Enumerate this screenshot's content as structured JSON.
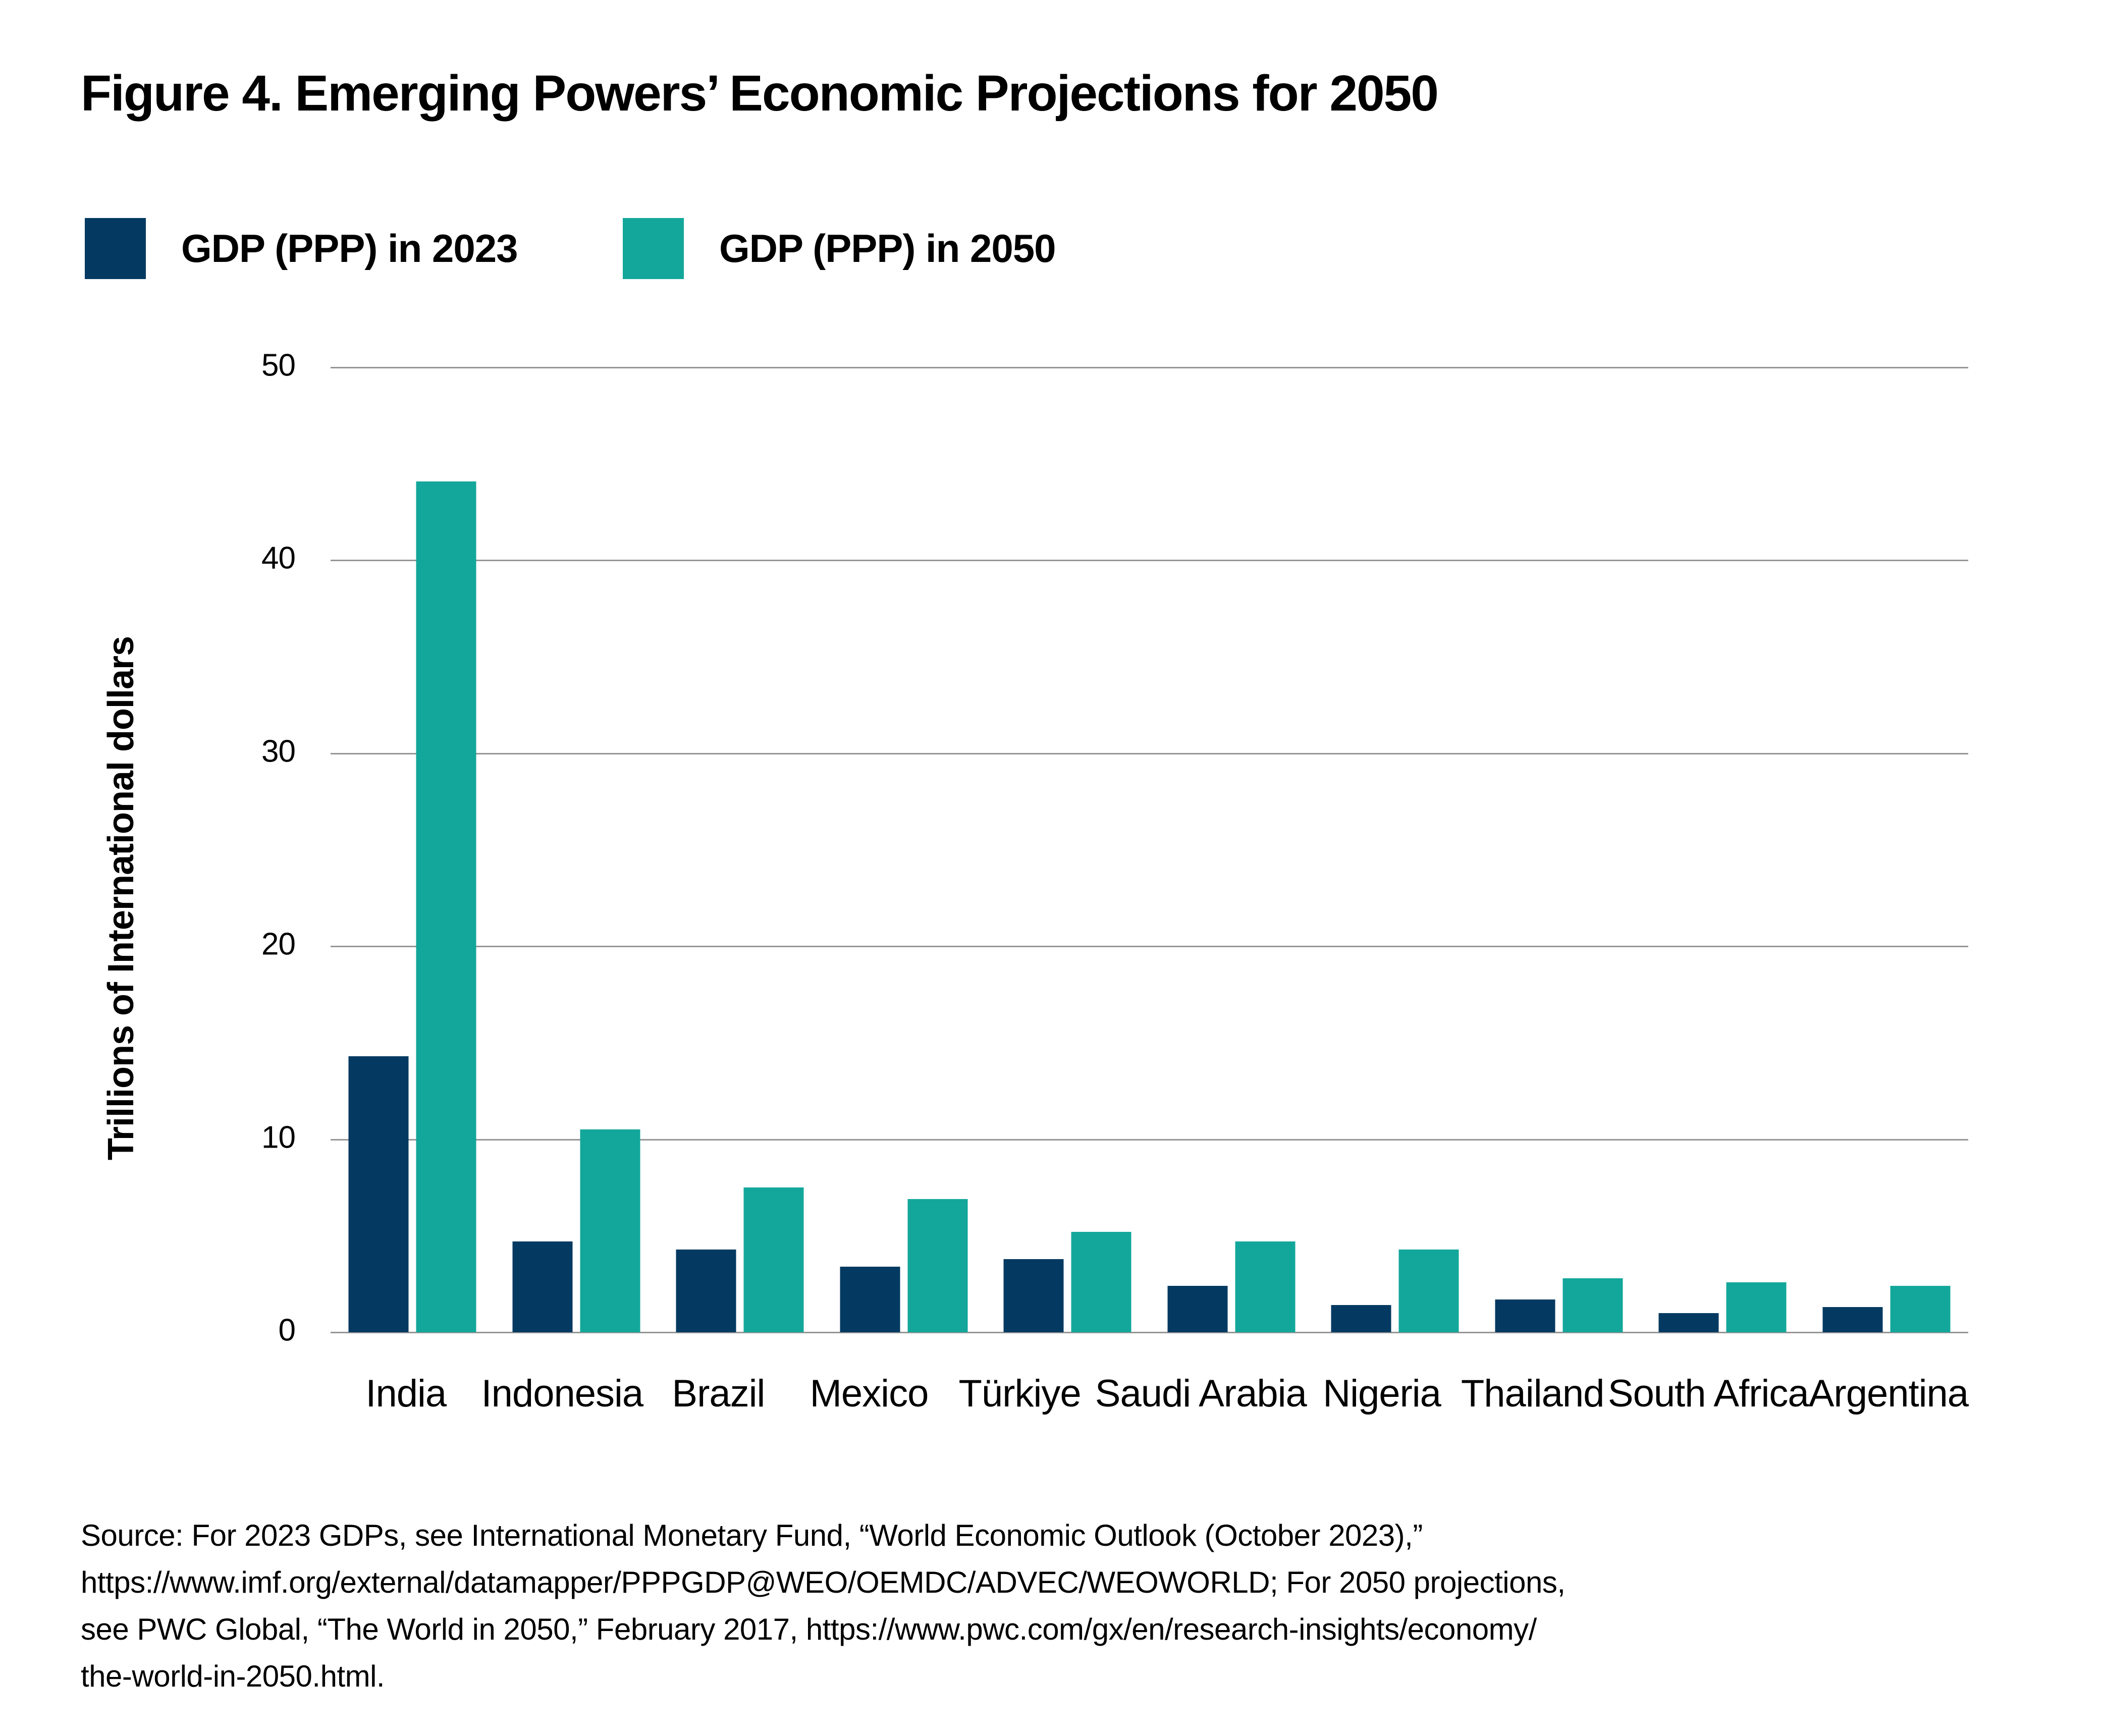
{
  "title": "Figure 4. Emerging Powers’ Economic Projections for 2050",
  "legend": {
    "items": [
      {
        "label": "GDP (PPP) in 2023",
        "color": "#043A61"
      },
      {
        "label": "GDP (PPP) in 2050",
        "color": "#13A79B"
      }
    ]
  },
  "chart_data": {
    "type": "bar",
    "title": "Figure 4. Emerging Powers’ Economic Projections for 2050",
    "categories": [
      "India",
      "Indonesia",
      "Brazil",
      "Mexico",
      "Türkiye",
      "Saudi Arabia",
      "Nigeria",
      "Thailand",
      "South Africa",
      "Argentina"
    ],
    "series": [
      {
        "name": "GDP (PPP) in 2023",
        "color": "#043A61",
        "values": [
          14.3,
          4.7,
          4.3,
          3.4,
          3.8,
          2.4,
          1.4,
          1.7,
          1.0,
          1.3
        ]
      },
      {
        "name": "GDP (PPP) in 2050",
        "color": "#13A79B",
        "values": [
          44.1,
          10.5,
          7.5,
          6.9,
          5.2,
          4.7,
          4.3,
          2.8,
          2.6,
          2.4
        ]
      }
    ],
    "xlabel": "",
    "ylabel": "Trillions of International dollars",
    "yticks": [
      0,
      10,
      20,
      30,
      40,
      50
    ],
    "ylim": [
      0,
      50
    ],
    "grid": true,
    "gridline_color": "#969696",
    "legend_position": "top-left"
  },
  "source": {
    "lines": [
      "Source: For 2023 GDPs, see International Monetary Fund, “World Economic Outlook (October 2023),”",
      "https://www.imf.org/external/datamapper/PPPGDP@WEO/OEMDC/ADVEC/WEOWORLD; For 2050 projections,",
      "see PWC Global, “The World in 2050,” February 2017, https://www.pwc.com/gx/en/research-insights/economy/",
      "the-world-in-2050.html."
    ]
  }
}
